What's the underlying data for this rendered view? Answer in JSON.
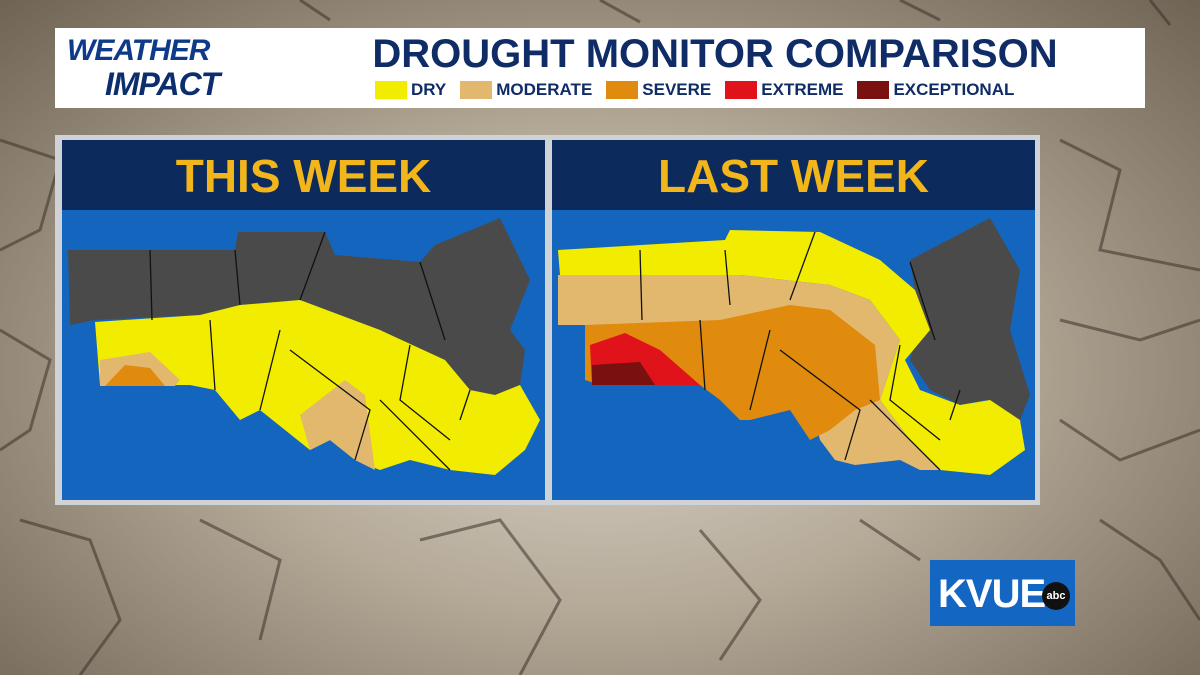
{
  "header": {
    "logo_top": "WEATHER",
    "logo_bottom": "IMPACT",
    "title": "DROUGHT MONITOR COMPARISON"
  },
  "legend": [
    {
      "label": "DRY",
      "color": "#f2ec00"
    },
    {
      "label": "MODERATE",
      "color": "#e2b86e"
    },
    {
      "label": "SEVERE",
      "color": "#e08a0e"
    },
    {
      "label": "EXTREME",
      "color": "#e0131a"
    },
    {
      "label": "EXCEPTIONAL",
      "color": "#7a1010"
    }
  ],
  "panels": [
    {
      "title": "THIS WEEK"
    },
    {
      "title": "LAST WEEK"
    }
  ],
  "station": {
    "name": "KVUE",
    "network": "abc"
  }
}
